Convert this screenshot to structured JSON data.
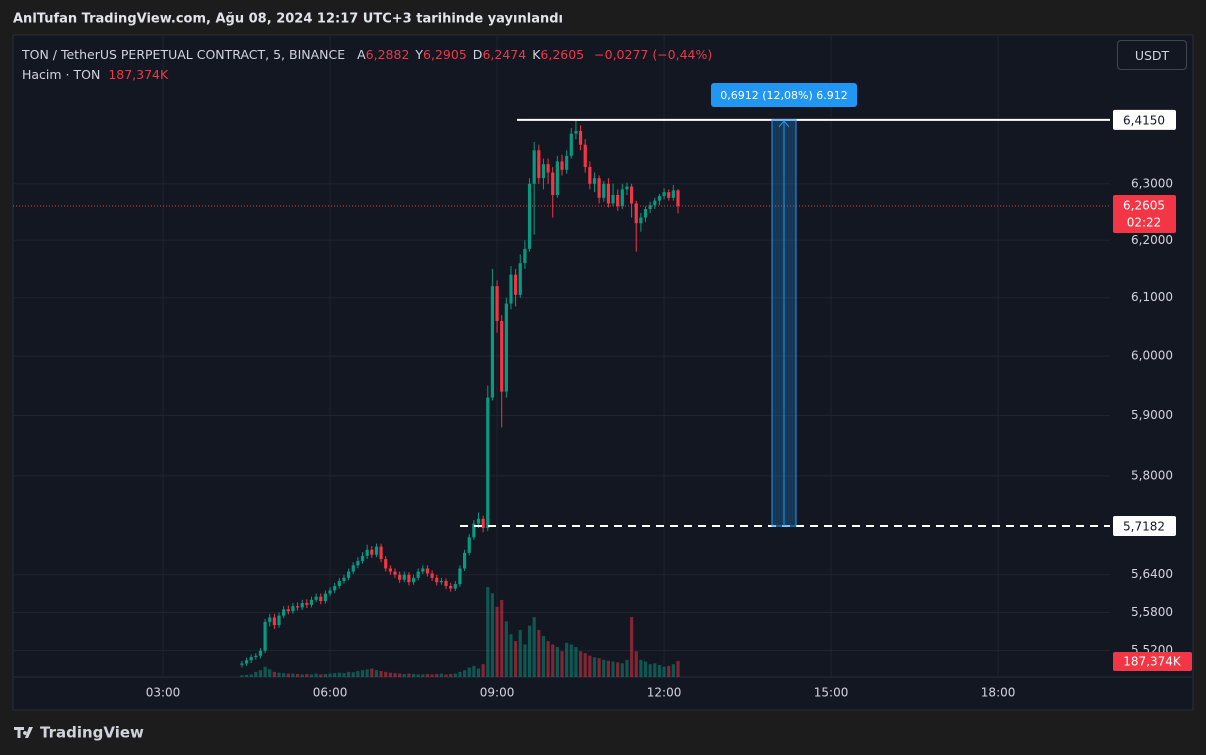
{
  "header": {
    "publisher_line": "AnlTufan TradingView.com, Ağu 08, 2024 12:17 UTC+3 tarihinde yayınlandı",
    "symbol": "TON / TetherUS PERPETUAL CONTRACT, 5, BINANCE",
    "ohlc_legend": [
      {
        "key": "A",
        "value": "6,2882"
      },
      {
        "key": "Y",
        "value": "6,2905"
      },
      {
        "key": "D",
        "value": "6,2474"
      },
      {
        "key": "K",
        "value": "6,2605"
      }
    ],
    "change": "−0,0277 (−0,44%)",
    "volume_title": "Hacim · TON",
    "currency_button": "USDT",
    "footer_brand": "TradingView"
  },
  "chart_data": {
    "type": "candlestick",
    "log_scale": true,
    "grid": true,
    "up_color": "#089981",
    "down_color": "#f23645",
    "x": [
      "04:25",
      "04:30",
      "04:35",
      "04:40",
      "04:45",
      "04:50",
      "04:55",
      "05:00",
      "05:05",
      "05:10",
      "05:15",
      "05:20",
      "05:25",
      "05:30",
      "05:35",
      "05:40",
      "05:45",
      "05:50",
      "05:55",
      "06:00",
      "06:05",
      "06:10",
      "06:15",
      "06:20",
      "06:25",
      "06:30",
      "06:35",
      "06:40",
      "06:45",
      "06:50",
      "06:55",
      "07:00",
      "07:05",
      "07:10",
      "07:15",
      "07:20",
      "07:25",
      "07:30",
      "07:35",
      "07:40",
      "07:45",
      "07:50",
      "07:55",
      "08:00",
      "08:05",
      "08:10",
      "08:15",
      "08:20",
      "08:25",
      "08:30",
      "08:35",
      "08:40",
      "08:45",
      "08:50",
      "08:55",
      "09:00",
      "09:05",
      "09:10",
      "09:15",
      "09:20",
      "09:25",
      "09:30",
      "09:35",
      "09:40",
      "09:45",
      "09:50",
      "09:55",
      "10:00",
      "10:05",
      "10:10",
      "10:15",
      "10:20",
      "10:25",
      "10:30",
      "10:35",
      "10:40",
      "10:45",
      "10:50",
      "10:55",
      "11:00",
      "11:05",
      "11:10",
      "11:15",
      "11:20",
      "11:25",
      "11:30",
      "11:35",
      "11:40",
      "11:45",
      "11:50",
      "11:55",
      "12:00",
      "12:05",
      "12:10",
      "12:15"
    ],
    "open": [
      5.498,
      5.5,
      5.505,
      5.51,
      5.512,
      5.52,
      5.565,
      5.572,
      5.56,
      5.575,
      5.585,
      5.582,
      5.59,
      5.588,
      5.595,
      5.592,
      5.6,
      5.605,
      5.598,
      5.61,
      5.615,
      5.622,
      5.63,
      5.635,
      5.645,
      5.655,
      5.662,
      5.67,
      5.68,
      5.672,
      5.685,
      5.665,
      5.65,
      5.645,
      5.64,
      5.632,
      5.64,
      5.628,
      5.635,
      5.645,
      5.65,
      5.642,
      5.635,
      5.628,
      5.63,
      5.622,
      5.618,
      5.625,
      5.65,
      5.675,
      5.7,
      5.722,
      5.73,
      5.715,
      5.93,
      6.12,
      6.06,
      5.94,
      6.09,
      6.14,
      6.105,
      6.16,
      6.185,
      6.3,
      6.36,
      6.31,
      6.335,
      6.32,
      6.28,
      6.34,
      6.325,
      6.35,
      6.39,
      6.395,
      6.37,
      6.33,
      6.3,
      6.31,
      6.275,
      6.3,
      6.265,
      6.28,
      6.26,
      6.29,
      6.295,
      6.265,
      6.23,
      6.24,
      6.255,
      6.262,
      6.27,
      6.278,
      6.285,
      6.275,
      6.2882
    ],
    "high": [
      5.504,
      5.509,
      5.514,
      5.516,
      5.524,
      5.57,
      5.578,
      5.578,
      5.58,
      5.59,
      5.591,
      5.595,
      5.596,
      5.6,
      5.601,
      5.605,
      5.61,
      5.61,
      5.615,
      5.62,
      5.627,
      5.635,
      5.64,
      5.65,
      5.66,
      5.668,
      5.676,
      5.688,
      5.686,
      5.69,
      5.69,
      5.67,
      5.655,
      5.65,
      5.645,
      5.645,
      5.644,
      5.64,
      5.65,
      5.655,
      5.655,
      5.647,
      5.64,
      5.635,
      5.634,
      5.627,
      5.63,
      5.655,
      5.68,
      5.705,
      5.728,
      5.74,
      5.735,
      5.95,
      6.15,
      6.13,
      6.07,
      6.1,
      6.155,
      6.15,
      6.175,
      6.2,
      6.31,
      6.375,
      6.37,
      6.345,
      6.345,
      6.33,
      6.35,
      6.352,
      6.36,
      6.4,
      6.415,
      6.405,
      6.38,
      6.34,
      6.32,
      6.315,
      6.305,
      6.31,
      6.3,
      6.29,
      6.3,
      6.302,
      6.3,
      6.27,
      6.248,
      6.26,
      6.268,
      6.275,
      6.282,
      6.292,
      6.29,
      6.298,
      6.2905
    ],
    "low": [
      5.494,
      5.496,
      5.501,
      5.506,
      5.508,
      5.516,
      5.558,
      5.554,
      5.556,
      5.571,
      5.577,
      5.578,
      5.583,
      5.584,
      5.587,
      5.588,
      5.596,
      5.593,
      5.594,
      5.606,
      5.611,
      5.618,
      5.626,
      5.631,
      5.641,
      5.65,
      5.658,
      5.665,
      5.667,
      5.668,
      5.66,
      5.645,
      5.64,
      5.635,
      5.627,
      5.628,
      5.623,
      5.624,
      5.631,
      5.641,
      5.637,
      5.63,
      5.623,
      5.624,
      5.617,
      5.613,
      5.614,
      5.621,
      5.646,
      5.671,
      5.696,
      5.715,
      5.708,
      5.71,
      5.925,
      6.04,
      5.88,
      5.93,
      6.08,
      6.085,
      6.1,
      6.15,
      6.18,
      6.21,
      6.3,
      6.29,
      6.3,
      6.24,
      6.275,
      6.315,
      6.318,
      6.345,
      6.38,
      6.36,
      6.32,
      6.29,
      6.285,
      6.265,
      6.268,
      6.258,
      6.26,
      6.252,
      6.255,
      6.28,
      6.24,
      6.18,
      6.215,
      6.232,
      6.248,
      6.255,
      6.262,
      6.272,
      6.27,
      6.27,
      6.2474
    ],
    "close": [
      5.5,
      5.505,
      5.51,
      5.512,
      5.52,
      5.565,
      5.572,
      5.56,
      5.575,
      5.585,
      5.582,
      5.59,
      5.588,
      5.595,
      5.592,
      5.6,
      5.605,
      5.598,
      5.61,
      5.615,
      5.622,
      5.63,
      5.635,
      5.645,
      5.655,
      5.662,
      5.67,
      5.68,
      5.672,
      5.685,
      5.665,
      5.65,
      5.645,
      5.64,
      5.632,
      5.64,
      5.628,
      5.635,
      5.645,
      5.65,
      5.642,
      5.635,
      5.628,
      5.63,
      5.622,
      5.618,
      5.625,
      5.65,
      5.675,
      5.7,
      5.722,
      5.73,
      5.715,
      5.93,
      6.12,
      6.06,
      5.94,
      6.09,
      6.14,
      6.105,
      6.16,
      6.185,
      6.3,
      6.36,
      6.31,
      6.335,
      6.32,
      6.28,
      6.34,
      6.325,
      6.35,
      6.39,
      6.395,
      6.37,
      6.33,
      6.3,
      6.31,
      6.275,
      6.3,
      6.265,
      6.28,
      6.26,
      6.29,
      6.295,
      6.265,
      6.23,
      6.24,
      6.255,
      6.262,
      6.27,
      6.278,
      6.285,
      6.275,
      6.2882,
      6.2605
    ],
    "volume": [
      20,
      25,
      30,
      60,
      80,
      120,
      90,
      60,
      50,
      45,
      40,
      40,
      35,
      30,
      35,
      30,
      40,
      30,
      35,
      40,
      45,
      50,
      45,
      60,
      55,
      70,
      80,
      90,
      100,
      80,
      70,
      60,
      50,
      45,
      40,
      35,
      40,
      35,
      30,
      30,
      35,
      30,
      35,
      40,
      30,
      35,
      40,
      60,
      80,
      110,
      130,
      100,
      150,
      1050,
      980,
      820,
      900,
      650,
      500,
      420,
      550,
      380,
      600,
      700,
      550,
      480,
      420,
      380,
      350,
      300,
      400,
      380,
      350,
      300,
      280,
      250,
      230,
      220,
      200,
      190,
      180,
      170,
      160,
      200,
      700,
      300,
      200,
      180,
      150,
      160,
      140,
      120,
      130,
      150,
      187.374
    ],
    "last_volume_label": "187,374K",
    "vlim": [
      0,
      7500
    ],
    "xlim": [
      0.305,
      20.01
    ],
    "xticks": [
      {
        "value": 3,
        "label": "03:00"
      },
      {
        "value": 6,
        "label": "06:00"
      },
      {
        "value": 9,
        "label": "09:00"
      },
      {
        "value": 12,
        "label": "12:00"
      },
      {
        "value": 15,
        "label": "15:00"
      },
      {
        "value": 18,
        "label": "18:00"
      }
    ],
    "ylim": [
      5.479,
      6.571
    ],
    "yticks": [
      {
        "value": 6.3,
        "label": "6,3000"
      },
      {
        "value": 6.2,
        "label": "6,2000"
      },
      {
        "value": 6.1,
        "label": "6,1000"
      },
      {
        "value": 6,
        "label": "6,0000"
      },
      {
        "value": 5.9,
        "label": "5,9000"
      },
      {
        "value": 5.8,
        "label": "5,8000"
      },
      {
        "value": 5.64,
        "label": "5,6400"
      },
      {
        "value": 5.58,
        "label": "5,5800"
      },
      {
        "value": 5.52,
        "label": "5,5200"
      }
    ],
    "levels": [
      {
        "value": 6.415,
        "label": "6,4150"
      },
      {
        "value": 5.7182,
        "label": "5,7182"
      }
    ],
    "last_price": {
      "value": 6.2605,
      "label": "6,2605",
      "countdown": "02:22"
    },
    "measure_label": "0,6912 (12,08%) 6.912"
  }
}
